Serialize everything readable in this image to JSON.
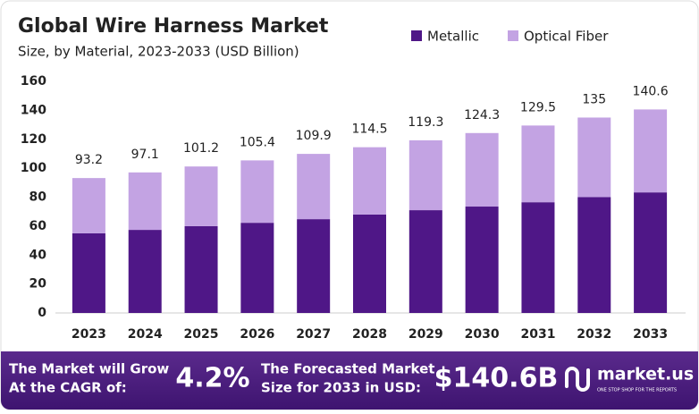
{
  "chart_data": {
    "type": "stacked-bar",
    "title": "Global Wire Harness Market",
    "subtitle": "Size, by Material, 2023-2033 (USD Billion)",
    "categories": [
      "2023",
      "2024",
      "2025",
      "2026",
      "2027",
      "2028",
      "2029",
      "2030",
      "2031",
      "2032",
      "2033"
    ],
    "series": [
      {
        "name": "Metallic",
        "color": "#4f1787",
        "values": [
          55,
          57.4,
          60,
          62.3,
          64.8,
          68,
          71,
          73.5,
          76.5,
          80,
          83.3
        ]
      },
      {
        "name": "Optical Fiber",
        "color": "#c3a3e3",
        "values": [
          38.2,
          39.7,
          41.2,
          43.1,
          45.1,
          46.5,
          48.3,
          50.8,
          53,
          55,
          57.3
        ]
      }
    ],
    "totals": [
      93.2,
      97.1,
      101.2,
      105.4,
      109.9,
      114.5,
      119.3,
      124.3,
      129.5,
      135.0,
      140.6
    ],
    "ylim": [
      0,
      160
    ],
    "yticks": [
      0,
      20,
      40,
      60,
      80,
      100,
      120,
      140,
      160
    ],
    "grid": false,
    "legend": "top-right"
  },
  "footer": {
    "cagr_label": [
      "The Market will Grow",
      "At the CAGR of:"
    ],
    "cagr": "4.2%",
    "forecast_label": [
      "The Forecasted Market",
      "Size for 2033 in USD:"
    ],
    "forecast": "$140.6B",
    "brand": "market.us",
    "tagline": "ONE STOP SHOP FOR THE REPORTS"
  }
}
